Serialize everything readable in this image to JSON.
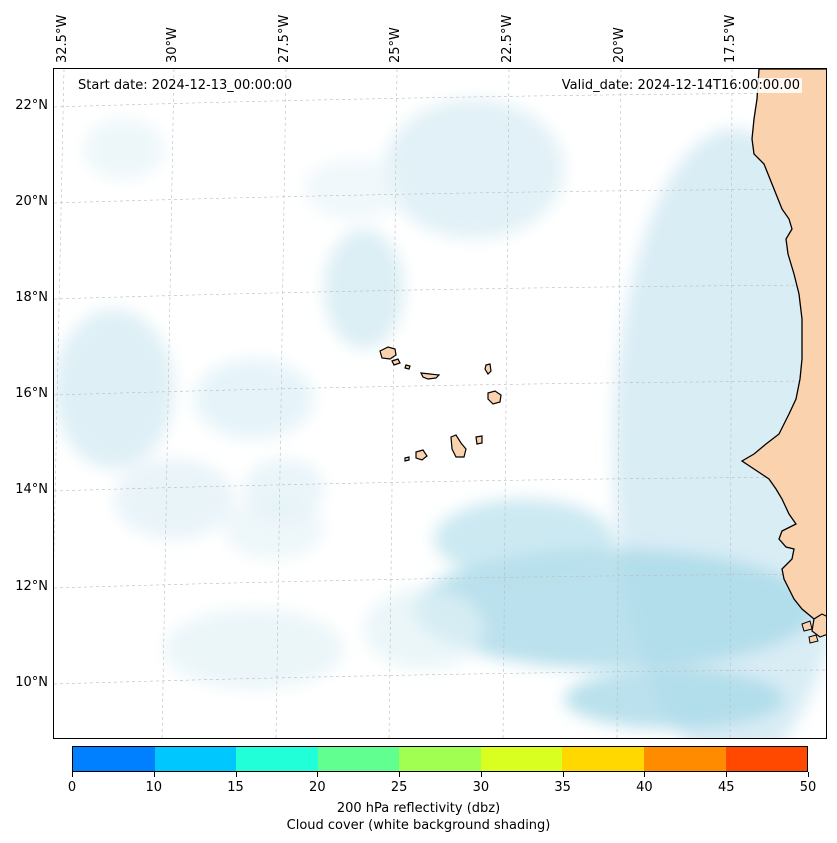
{
  "map": {
    "start_date_text": "Start date: 2024-12-13_00:00:00",
    "valid_date_text": "Valid_date: 2024-12-14T16:00:00.00",
    "lon_labels": [
      "32.5°W",
      "30°W",
      "27.5°W",
      "25°W",
      "22.5°W",
      "20°W",
      "17.5°W"
    ],
    "lat_labels": [
      "22°N",
      "20°N",
      "18°N",
      "16°N",
      "14°N",
      "12°N",
      "10°N"
    ],
    "features": [
      "cloud-cover-shading",
      "cape-verde-islands",
      "west-africa-coastline"
    ],
    "colors": {
      "land": "#fbd2ae",
      "cloud": "#a9d9e8",
      "coast": "#000000"
    }
  },
  "colorbar": {
    "tick_labels": [
      "0",
      "10",
      "15",
      "20",
      "25",
      "30",
      "35",
      "40",
      "45",
      "50"
    ],
    "colors": [
      "#0080ff",
      "#00c8ff",
      "#20ffd8",
      "#60ff90",
      "#a0ff50",
      "#d8ff20",
      "#ffd800",
      "#ff8c00",
      "#ff4800"
    ],
    "title_line1": "200 hPa reflectivity (dbz)",
    "title_line2": "Cloud cover (white background shading)"
  }
}
